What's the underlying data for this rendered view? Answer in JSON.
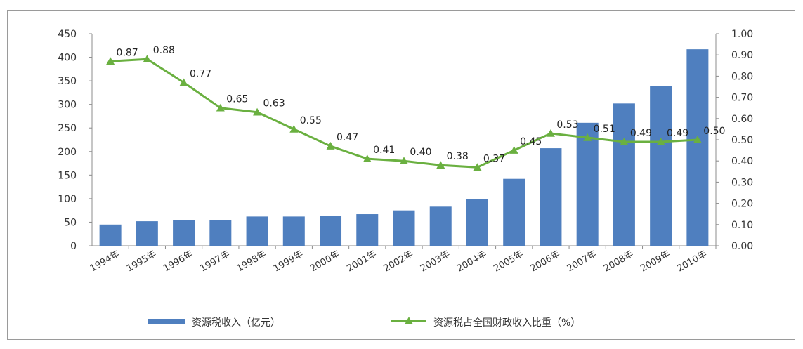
{
  "chart_data": {
    "type": "bar+line",
    "categories": [
      "1994年",
      "1995年",
      "1996年",
      "1997年",
      "1998年",
      "1999年",
      "2000年",
      "2001年",
      "2002年",
      "2003年",
      "2004年",
      "2005年",
      "2006年",
      "2007年",
      "2008年",
      "2009年",
      "2010年"
    ],
    "series": [
      {
        "name": "资源税收入（亿元）",
        "type": "bar",
        "axis": "left",
        "color": "#4f7fbf",
        "values": [
          45,
          52,
          55,
          55,
          62,
          62,
          63,
          67,
          75,
          83,
          99,
          142,
          207,
          261,
          302,
          339,
          417
        ]
      },
      {
        "name": "资源税占全国财政收入比重（%）",
        "type": "line",
        "axis": "right",
        "color": "#6ab040",
        "values": [
          0.87,
          0.88,
          0.77,
          0.65,
          0.63,
          0.55,
          0.47,
          0.41,
          0.4,
          0.38,
          0.37,
          0.45,
          0.53,
          0.51,
          0.49,
          0.49,
          0.5
        ],
        "labels": [
          "0.87",
          "0.88",
          "0.77",
          "0.65",
          "0.63",
          "0.55",
          "0.47",
          "0.41",
          "0.40",
          "0.38",
          "0.37",
          "0.45",
          "0.53",
          "0.51",
          "0.49",
          "0.49",
          "0.50"
        ]
      }
    ],
    "y_left": {
      "min": 0,
      "max": 450,
      "step": 50,
      "ticks": [
        "0",
        "50",
        "100",
        "150",
        "200",
        "250",
        "300",
        "350",
        "400",
        "450"
      ]
    },
    "y_right": {
      "min": 0,
      "max": 1.0,
      "step": 0.1,
      "ticks": [
        "0.00",
        "0.10",
        "0.20",
        "0.30",
        "0.40",
        "0.50",
        "0.60",
        "0.70",
        "0.80",
        "0.90",
        "1.00"
      ]
    },
    "legend": {
      "position": "bottom"
    },
    "grid": false
  }
}
